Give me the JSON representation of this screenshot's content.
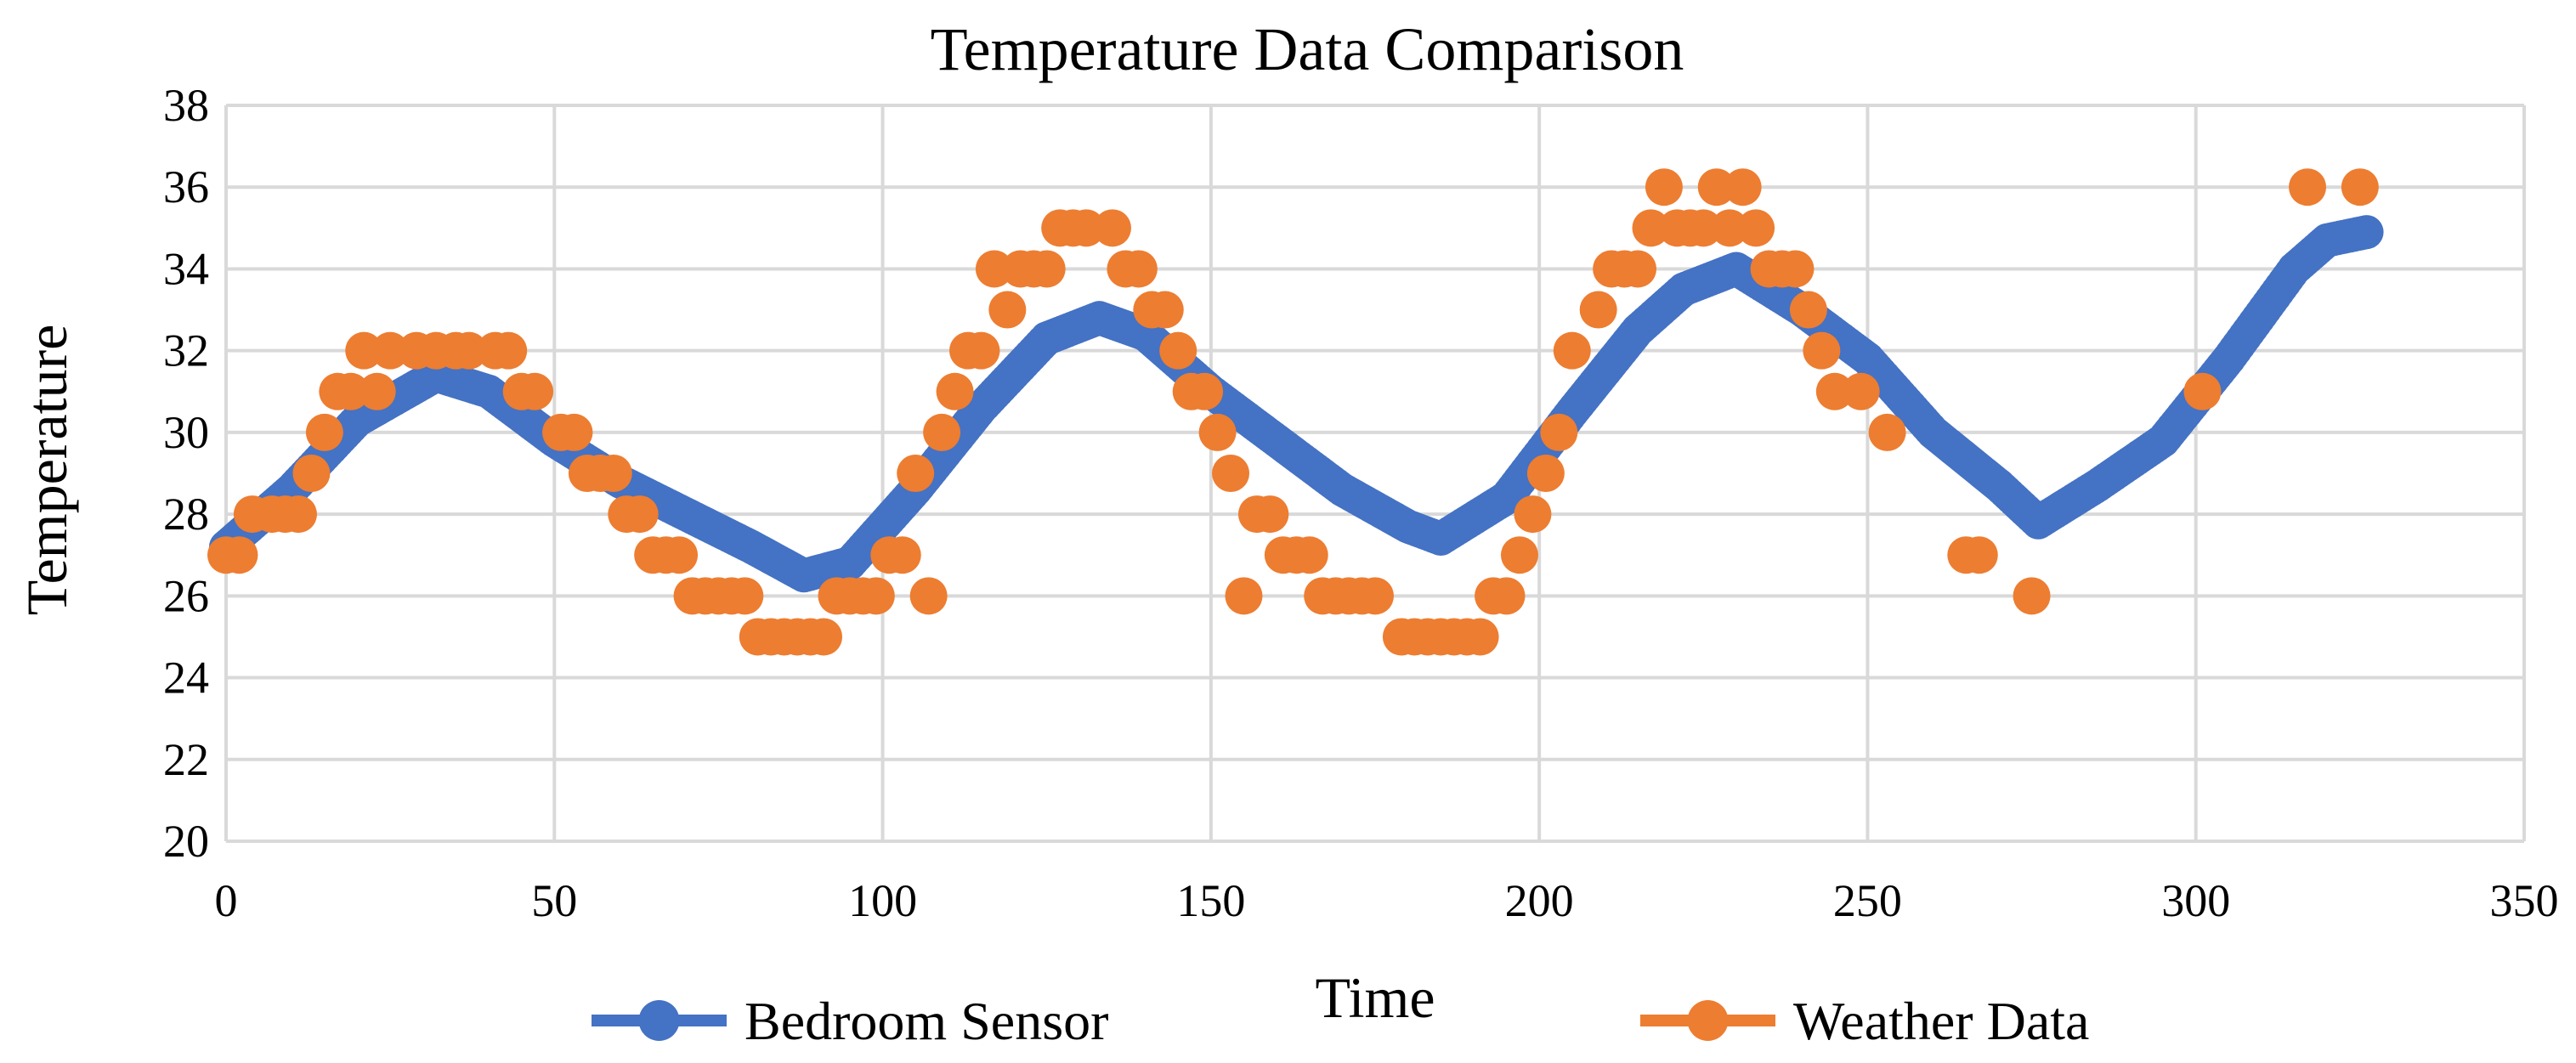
{
  "chart_data": {
    "type": "scatter",
    "title": "Temperature Data Comparison",
    "xlabel": "Time",
    "ylabel": "Temperature",
    "xlim": [
      0,
      350
    ],
    "ylim": [
      20,
      38
    ],
    "x_ticks": [
      0,
      50,
      100,
      150,
      200,
      250,
      300,
      350
    ],
    "y_ticks": [
      20,
      22,
      24,
      26,
      28,
      30,
      32,
      34,
      36,
      38
    ],
    "grid": true,
    "legend_position": "bottom",
    "series": [
      {
        "name": "Bedroom Sensor",
        "color": "#4472c4",
        "marker": "circle",
        "style": "dense-line-of-markers",
        "points": [
          [
            0,
            27.2
          ],
          [
            10,
            28.6
          ],
          [
            20,
            30.3
          ],
          [
            32,
            31.4
          ],
          [
            40,
            31.0
          ],
          [
            50,
            29.8
          ],
          [
            60,
            28.8
          ],
          [
            70,
            28.0
          ],
          [
            80,
            27.2
          ],
          [
            88,
            26.5
          ],
          [
            95,
            26.8
          ],
          [
            105,
            28.6
          ],
          [
            115,
            30.6
          ],
          [
            125,
            32.3
          ],
          [
            133,
            32.8
          ],
          [
            140,
            32.4
          ],
          [
            150,
            31.0
          ],
          [
            160,
            29.8
          ],
          [
            170,
            28.6
          ],
          [
            180,
            27.7
          ],
          [
            185,
            27.4
          ],
          [
            195,
            28.4
          ],
          [
            205,
            30.5
          ],
          [
            215,
            32.5
          ],
          [
            222,
            33.5
          ],
          [
            230,
            34.0
          ],
          [
            240,
            33.0
          ],
          [
            250,
            31.8
          ],
          [
            260,
            30.0
          ],
          [
            270,
            28.7
          ],
          [
            276,
            27.8
          ],
          [
            285,
            28.7
          ],
          [
            295,
            29.8
          ],
          [
            305,
            31.8
          ],
          [
            315,
            34.0
          ],
          [
            320,
            34.7
          ],
          [
            326,
            34.9
          ]
        ]
      },
      {
        "name": "Weather Data",
        "color": "#ed7d31",
        "marker": "circle",
        "points": [
          [
            0,
            27
          ],
          [
            2,
            27
          ],
          [
            4,
            28
          ],
          [
            7,
            28
          ],
          [
            9,
            28
          ],
          [
            11,
            28
          ],
          [
            13,
            29
          ],
          [
            15,
            30
          ],
          [
            17,
            31
          ],
          [
            19,
            31
          ],
          [
            21,
            32
          ],
          [
            23,
            31
          ],
          [
            25,
            32
          ],
          [
            29,
            32
          ],
          [
            32,
            32
          ],
          [
            35,
            32
          ],
          [
            37,
            32
          ],
          [
            41,
            32
          ],
          [
            43,
            32
          ],
          [
            45,
            31
          ],
          [
            47,
            31
          ],
          [
            51,
            30
          ],
          [
            53,
            30
          ],
          [
            55,
            29
          ],
          [
            57,
            29
          ],
          [
            59,
            29
          ],
          [
            61,
            28
          ],
          [
            63,
            28
          ],
          [
            65,
            27
          ],
          [
            67,
            27
          ],
          [
            69,
            27
          ],
          [
            71,
            26
          ],
          [
            73,
            26
          ],
          [
            75,
            26
          ],
          [
            77,
            26
          ],
          [
            79,
            26
          ],
          [
            81,
            25
          ],
          [
            83,
            25
          ],
          [
            85,
            25
          ],
          [
            87,
            25
          ],
          [
            89,
            25
          ],
          [
            91,
            25
          ],
          [
            93,
            26
          ],
          [
            95,
            26
          ],
          [
            97,
            26
          ],
          [
            99,
            26
          ],
          [
            101,
            27
          ],
          [
            103,
            27
          ],
          [
            105,
            29
          ],
          [
            107,
            26
          ],
          [
            109,
            30
          ],
          [
            111,
            31
          ],
          [
            113,
            32
          ],
          [
            115,
            32
          ],
          [
            117,
            34
          ],
          [
            119,
            33
          ],
          [
            121,
            34
          ],
          [
            123,
            34
          ],
          [
            125,
            34
          ],
          [
            127,
            35
          ],
          [
            129,
            35
          ],
          [
            131,
            35
          ],
          [
            135,
            35
          ],
          [
            137,
            34
          ],
          [
            139,
            34
          ],
          [
            141,
            33
          ],
          [
            143,
            33
          ],
          [
            145,
            32
          ],
          [
            147,
            31
          ],
          [
            149,
            31
          ],
          [
            151,
            30
          ],
          [
            153,
            29
          ],
          [
            155,
            26
          ],
          [
            157,
            28
          ],
          [
            159,
            28
          ],
          [
            161,
            27
          ],
          [
            163,
            27
          ],
          [
            165,
            27
          ],
          [
            167,
            26
          ],
          [
            169,
            26
          ],
          [
            171,
            26
          ],
          [
            173,
            26
          ],
          [
            175,
            26
          ],
          [
            179,
            25
          ],
          [
            181,
            25
          ],
          [
            183,
            25
          ],
          [
            185,
            25
          ],
          [
            187,
            25
          ],
          [
            189,
            25
          ],
          [
            191,
            25
          ],
          [
            193,
            26
          ],
          [
            195,
            26
          ],
          [
            197,
            27
          ],
          [
            199,
            28
          ],
          [
            201,
            29
          ],
          [
            203,
            30
          ],
          [
            205,
            32
          ],
          [
            209,
            33
          ],
          [
            211,
            34
          ],
          [
            213,
            34
          ],
          [
            215,
            34
          ],
          [
            217,
            35
          ],
          [
            219,
            36
          ],
          [
            221,
            35
          ],
          [
            223,
            35
          ],
          [
            225,
            35
          ],
          [
            227,
            36
          ],
          [
            229,
            35
          ],
          [
            231,
            36
          ],
          [
            233,
            35
          ],
          [
            235,
            34
          ],
          [
            237,
            34
          ],
          [
            239,
            34
          ],
          [
            241,
            33
          ],
          [
            243,
            32
          ],
          [
            245,
            31
          ],
          [
            249,
            31
          ],
          [
            253,
            30
          ],
          [
            265,
            27
          ],
          [
            267,
            27
          ],
          [
            275,
            26
          ],
          [
            301,
            31
          ],
          [
            317,
            36
          ],
          [
            325,
            36
          ]
        ]
      }
    ]
  }
}
